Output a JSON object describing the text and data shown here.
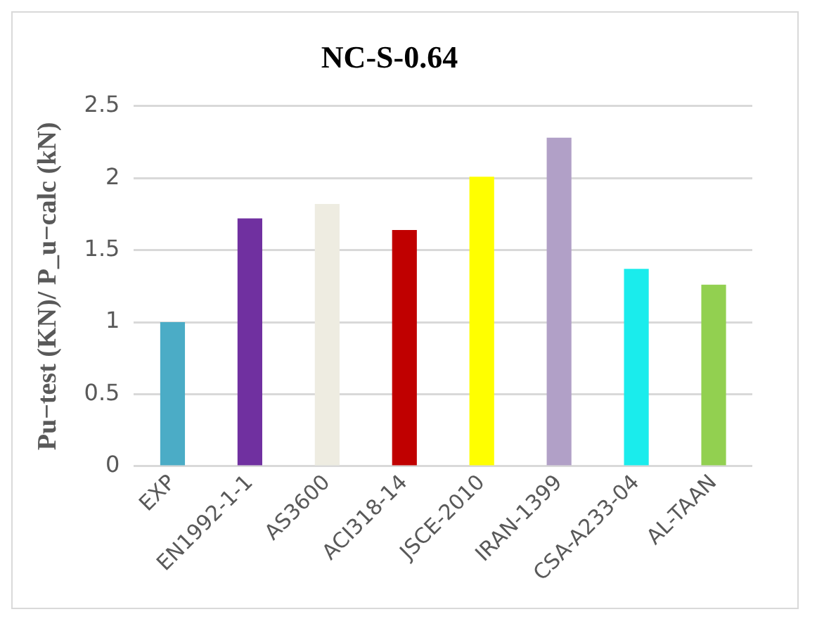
{
  "chart_data": {
    "type": "bar",
    "title": "NC-S-0.64",
    "ylabel": "Pu−test (KN)/ P_u−calc (kN)",
    "categories": [
      "EXP",
      "EN1992-1-1",
      "AS3600",
      "ACI318-14",
      "JSCE-2010",
      "IRAN-1399",
      "CSA-A233-04",
      "AL-TAAN"
    ],
    "values": [
      1.0,
      1.72,
      1.82,
      1.64,
      2.01,
      2.28,
      1.37,
      1.26
    ],
    "colors": [
      "#4bacc6",
      "#7030a0",
      "#eeece1",
      "#c00000",
      "#ffff00",
      "#b1a0c7",
      "#1aecec",
      "#92d050"
    ],
    "ylim": [
      0,
      2.5
    ],
    "yticks": [
      0,
      0.5,
      1,
      1.5,
      2,
      2.5
    ],
    "grid": "y",
    "legend": false
  }
}
